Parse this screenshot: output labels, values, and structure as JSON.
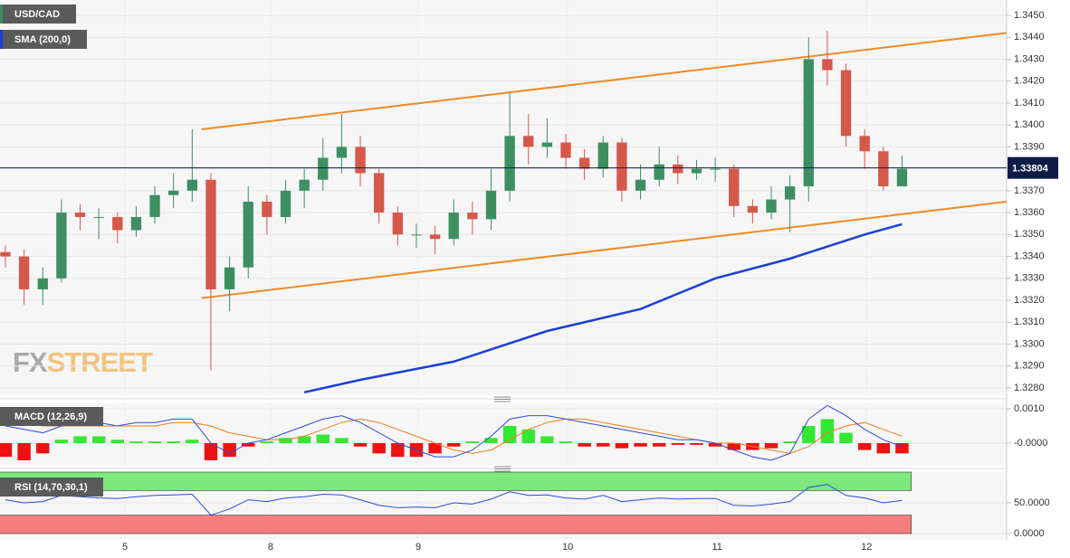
{
  "chart_data": [
    {
      "type": "candlestick",
      "title": "USD/CAD",
      "open": [
        1.3342,
        1.334,
        1.3325,
        1.333,
        1.336,
        1.3358,
        1.3358,
        1.3352,
        1.3358,
        1.3368,
        1.337,
        1.3375,
        1.3325,
        1.3335,
        1.3365,
        1.3358,
        1.337,
        1.3375,
        1.3385,
        1.339,
        1.3378,
        1.336,
        1.335,
        1.335,
        1.3348,
        1.336,
        1.3357,
        1.337,
        1.3395,
        1.339,
        1.3392,
        1.3385,
        1.338,
        1.3392,
        1.337,
        1.3375,
        1.3382,
        1.3378,
        1.338,
        1.338,
        1.3363,
        1.336,
        1.3366,
        1.3372,
        1.343,
        1.3425,
        1.3395,
        1.3388,
        1.3372
      ],
      "high": [
        1.3345,
        1.3343,
        1.3335,
        1.3366,
        1.3364,
        1.3362,
        1.336,
        1.3363,
        1.3372,
        1.3378,
        1.3398,
        1.3378,
        1.334,
        1.3372,
        1.3368,
        1.3375,
        1.338,
        1.3394,
        1.3405,
        1.3395,
        1.338,
        1.3363,
        1.3355,
        1.3354,
        1.3366,
        1.3365,
        1.338,
        1.3415,
        1.3405,
        1.3403,
        1.3396,
        1.3389,
        1.3395,
        1.3394,
        1.3382,
        1.339,
        1.3386,
        1.3384,
        1.3385,
        1.3382,
        1.3366,
        1.3372,
        1.3377,
        1.344,
        1.3443,
        1.3428,
        1.3398,
        1.339,
        1.3386
      ],
      "low": [
        1.3335,
        1.3318,
        1.3318,
        1.3328,
        1.3352,
        1.3348,
        1.3346,
        1.3349,
        1.3355,
        1.3362,
        1.3365,
        1.3288,
        1.3315,
        1.333,
        1.335,
        1.3355,
        1.3362,
        1.337,
        1.3378,
        1.3372,
        1.3355,
        1.3345,
        1.3344,
        1.3341,
        1.3345,
        1.335,
        1.3352,
        1.3365,
        1.3382,
        1.3385,
        1.338,
        1.3375,
        1.3376,
        1.3365,
        1.3366,
        1.3372,
        1.3373,
        1.3375,
        1.3374,
        1.3358,
        1.3355,
        1.3357,
        1.3351,
        1.3365,
        1.3418,
        1.339,
        1.338,
        1.337,
        1.3372
      ],
      "close": [
        1.334,
        1.3325,
        1.333,
        1.336,
        1.3358,
        1.3358,
        1.3352,
        1.3358,
        1.3368,
        1.337,
        1.3375,
        1.3325,
        1.3335,
        1.3365,
        1.3358,
        1.337,
        1.3375,
        1.3385,
        1.339,
        1.3378,
        1.336,
        1.335,
        1.335,
        1.3348,
        1.336,
        1.3357,
        1.337,
        1.3395,
        1.339,
        1.3392,
        1.3385,
        1.338,
        1.3392,
        1.337,
        1.3375,
        1.3382,
        1.3378,
        1.338,
        1.338,
        1.3363,
        1.336,
        1.3366,
        1.3372,
        1.343,
        1.3425,
        1.3395,
        1.3388,
        1.3372,
        1.338
      ],
      "up_color": "#3d8f62",
      "down_color": "#d5584b",
      "xlim": [
        -0.29,
        53.6
      ],
      "ylim": [
        1.32767,
        1.3457
      ],
      "yticks": [
        {
          "value": 1.328,
          "label": "1.3280"
        },
        {
          "value": 1.329,
          "label": "1.3290"
        },
        {
          "value": 1.33,
          "label": "1.3300"
        },
        {
          "value": 1.331,
          "label": "1.3310"
        },
        {
          "value": 1.332,
          "label": "1.3320"
        },
        {
          "value": 1.333,
          "label": "1.3330"
        },
        {
          "value": 1.334,
          "label": "1.3340"
        },
        {
          "value": 1.335,
          "label": "1.3350"
        },
        {
          "value": 1.336,
          "label": "1.3360"
        },
        {
          "value": 1.337,
          "label": "1.3370"
        },
        {
          "value": 1.338,
          "label": "1.3380"
        },
        {
          "value": 1.339,
          "label": "1.3390"
        },
        {
          "value": 1.34,
          "label": "1.3400"
        },
        {
          "value": 1.341,
          "label": "1.3410"
        },
        {
          "value": 1.342,
          "label": "1.3420"
        },
        {
          "value": 1.343,
          "label": "1.3430"
        },
        {
          "value": 1.344,
          "label": "1.3440"
        },
        {
          "value": 1.345,
          "label": "1.3450"
        }
      ],
      "grid": true,
      "overlays": [
        {
          "name": "SMA (200,0)",
          "color": "#1c3fd6",
          "x": [
            16,
            19,
            24,
            29,
            34,
            38,
            42,
            46,
            48
          ],
          "values": [
            1.3278,
            1.32837,
            1.3292,
            1.3306,
            1.3316,
            1.333,
            1.3339,
            1.335,
            1.33547
          ]
        }
      ],
      "trendlines": [
        {
          "x": [
            10.5,
            53.6
          ],
          "values": [
            1.3398,
            1.3442
          ]
        },
        {
          "x": [
            10.5,
            53.6
          ],
          "values": [
            1.3321,
            1.3365
          ]
        }
      ],
      "trendline_color": "#f08a24",
      "last_price": {
        "value": 1.33804,
        "label": "1.33804"
      },
      "last_price_color": "#0e1c45",
      "watermark": [
        "FX",
        "STREET"
      ]
    },
    {
      "type": "macd",
      "title": "MACD (12,26,9)",
      "histogram": [
        -0.0004,
        -0.0005,
        -0.0003,
        0.0001,
        0.0002,
        0.0002,
        0.0001,
        5e-05,
        5e-05,
        5e-05,
        0.0001,
        -0.0005,
        -0.0004,
        -0.0001,
        5e-05,
        0.00015,
        0.0002,
        0.00025,
        0.00015,
        -0.0001,
        -0.0003,
        -0.0004,
        -0.0004,
        -0.0003,
        -0.0001,
        5e-05,
        0.00015,
        0.0005,
        0.0004,
        0.0002,
        5e-05,
        -0.0001,
        -0.0001,
        -0.00015,
        -0.0001,
        -0.0001,
        -5e-05,
        -5e-05,
        -0.0001,
        -0.0002,
        -0.0002,
        -0.00015,
        5e-05,
        0.0005,
        0.0007,
        0.0003,
        -0.0002,
        -0.0003,
        -0.0003
      ],
      "macd": [
        0.0005,
        0.0004,
        0.0003,
        0.0005,
        0.0006,
        0.0006,
        0.0005,
        0.0006,
        0.0006,
        0.0007,
        0.0007,
        0,
        -0.0003,
        0,
        0.0001,
        0.0003,
        0.0005,
        0.0007,
        0.0008,
        0.0006,
        0.0003,
        0,
        -0.0002,
        -0.0004,
        -0.0004,
        -0.0002,
        0.0002,
        0.0007,
        0.0008,
        0.0008,
        0.0007,
        0.0006,
        0.0005,
        0.0004,
        0.0003,
        0.0002,
        0.0001,
        0.0001,
        0,
        -0.0002,
        -0.0004,
        -0.0005,
        -0.0003,
        0.0007,
        0.0011,
        0.0008,
        0.0004,
        0.0001,
        -0.0001
      ],
      "signal": [
        0.0006,
        0.0006,
        0.0005,
        0.0005,
        0.0005,
        0.0005,
        0.0005,
        0.0005,
        0.0005,
        0.0006,
        0.0006,
        0.0005,
        0.0003,
        0.0002,
        0.0001,
        0.0001,
        0.0002,
        0.0004,
        0.0006,
        0.0007,
        0.0006,
        0.0004,
        0.0002,
        0,
        -0.0002,
        -0.0003,
        -0.0002,
        0.0001,
        0.0004,
        0.0006,
        0.0007,
        0.0007,
        0.0006,
        0.0005,
        0.0004,
        0.0003,
        0.0002,
        0.0001,
        0,
        0,
        -0.0001,
        -0.0002,
        -0.0003,
        -0.0001,
        0.0003,
        0.0005,
        0.0006,
        0.0004,
        0.0002
      ],
      "macd_color": "#2b4bd8",
      "signal_color": "#f07a1a",
      "up_color": "#33e833",
      "down_color": "#ee1111",
      "ylim": [
        -0.00066,
        0.00116
      ],
      "yticks": [
        {
          "value": 0.001,
          "label": "0.0010"
        },
        {
          "value": 0,
          "label": "-0.0000"
        }
      ]
    },
    {
      "type": "rsi",
      "title": "RSI (14,70,30,1)",
      "values": [
        55,
        50,
        52,
        62,
        60,
        58,
        57,
        60,
        62,
        63,
        64,
        30,
        40,
        55,
        52,
        58,
        60,
        64,
        63,
        55,
        46,
        42,
        43,
        42,
        50,
        48,
        56,
        68,
        62,
        63,
        58,
        56,
        62,
        52,
        55,
        58,
        56,
        57,
        57,
        46,
        45,
        48,
        52,
        75,
        80,
        62,
        58,
        50,
        54
      ],
      "color": "#2b4bd8",
      "bands": [
        {
          "range": [
            70,
            100
          ],
          "color": "#7de87d"
        },
        {
          "range": [
            0,
            30
          ],
          "color": "#f47c7c"
        }
      ],
      "ylim": [
        -10.3,
        100
      ],
      "yticks": [
        {
          "value": 50,
          "label": "50.0000"
        },
        {
          "value": 0,
          "label": "0.0000"
        }
      ],
      "xticks": [
        {
          "value": 6.4,
          "label": "5"
        },
        {
          "value": 14.2,
          "label": "8"
        },
        {
          "value": 22.1,
          "label": "9"
        },
        {
          "value": 30.1,
          "label": "10"
        },
        {
          "value": 38.1,
          "label": "11"
        },
        {
          "value": 46.1,
          "label": "12"
        }
      ]
    }
  ]
}
